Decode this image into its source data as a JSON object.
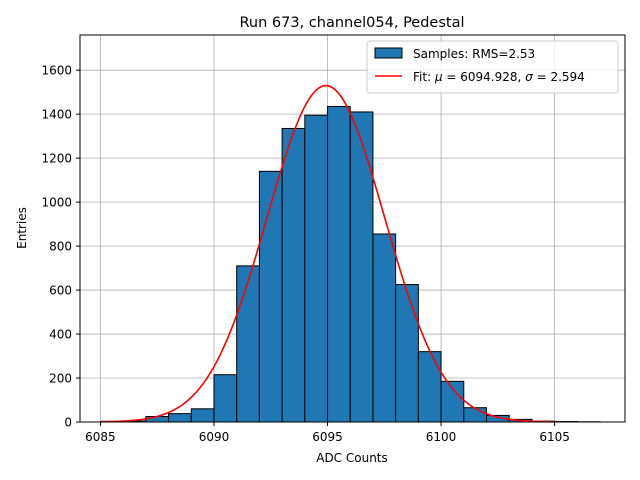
{
  "chart_data": {
    "type": "bar",
    "title": "Run 673, channel054, Pedestal",
    "xlabel": "ADC Counts",
    "ylabel": "Entries",
    "xlim": [
      6084.1,
      6108.1
    ],
    "ylim": [
      0,
      1760
    ],
    "x_ticks": [
      6085,
      6090,
      6095,
      6100,
      6105
    ],
    "y_ticks": [
      0,
      200,
      400,
      600,
      800,
      1000,
      1200,
      1400,
      1600
    ],
    "grid": true,
    "legend_position": "top-right",
    "colors": {
      "bars": "#1f77b4",
      "bar_edge": "#000000",
      "fit": "#ff0000",
      "grid": "#b0b0b0"
    },
    "histogram": {
      "name": "Samples: RMS=2.53",
      "bin_edges": [
        6085,
        6086,
        6087,
        6088,
        6089,
        6090,
        6091,
        6092,
        6093,
        6094,
        6095,
        6096,
        6097,
        6098,
        6099,
        6100,
        6101,
        6102,
        6103,
        6104,
        6105,
        6106,
        6107
      ],
      "counts": [
        3,
        5,
        25,
        38,
        60,
        215,
        710,
        1140,
        1335,
        1395,
        1435,
        1410,
        855,
        625,
        320,
        185,
        65,
        30,
        12,
        4,
        2,
        1
      ]
    },
    "fit": {
      "name_prefix": "Fit: ",
      "name_mu": "μ",
      "name_mid": " = 6094.928, ",
      "name_sigma": "σ",
      "name_suffix": " = 2.594",
      "mu": 6094.928,
      "sigma": 2.594,
      "amplitude": 1530,
      "x_range": [
        6085,
        6105
      ]
    }
  }
}
